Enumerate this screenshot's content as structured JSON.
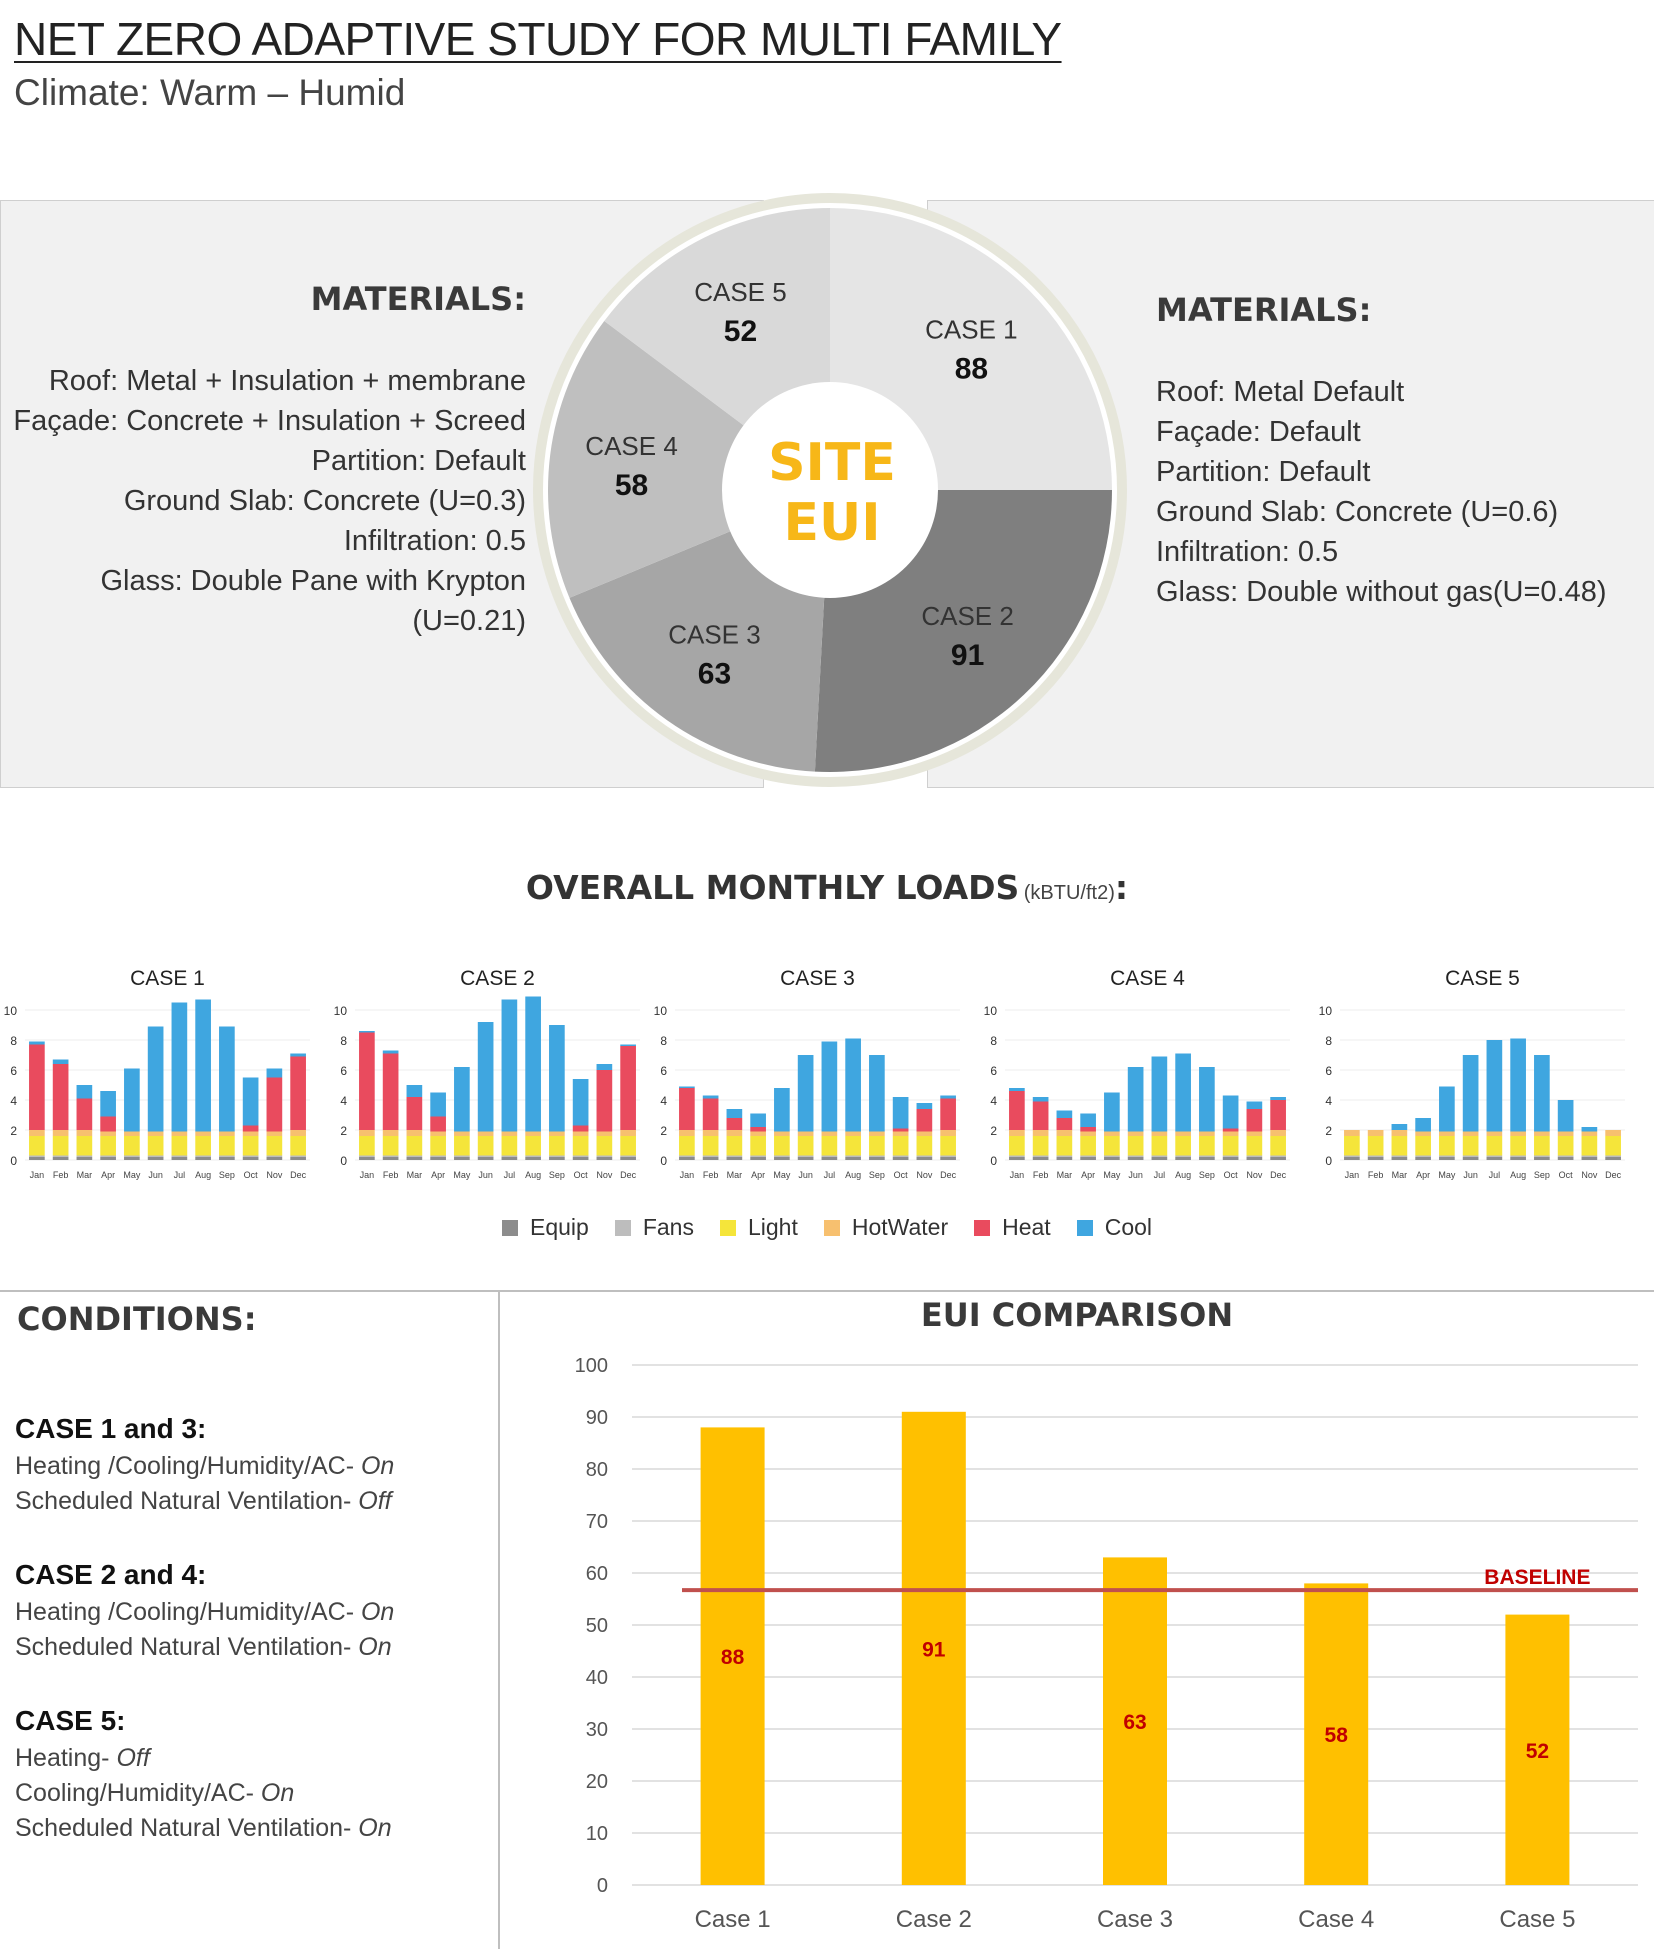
{
  "header": {
    "title": "NET ZERO ADAPTIVE STUDY FOR MULTI FAMILY",
    "subtitle": "Climate: Warm – Humid"
  },
  "materials_left": {
    "heading": "MATERIALS:",
    "lines": [
      "Roof: Metal + Insulation + membrane",
      "Façade: Concrete + Insulation + Screed",
      "Partition: Default",
      "Ground Slab: Concrete (U=0.3)",
      "Infiltration: 0.5",
      "Glass: Double Pane with Krypton",
      "(U=0.21)"
    ]
  },
  "materials_right": {
    "heading": "MATERIALS:",
    "lines": [
      "Roof: Metal Default",
      "Façade: Default",
      "Partition: Default",
      "Ground Slab: Concrete (U=0.6)",
      "Infiltration: 0.5",
      "Glass: Double without gas(U=0.48)"
    ]
  },
  "pie": {
    "center_line1": "SITE",
    "center_line2": "EUI",
    "colors": {
      "case1": "#e5e5e5",
      "case2": "#7f7f7f",
      "case3": "#a6a6a6",
      "case4": "#bfbfbf",
      "case5": "#d9d9d9",
      "center_text": "#f7b718"
    },
    "slices": [
      {
        "label": "CASE 1",
        "value": 88
      },
      {
        "label": "CASE 2",
        "value": 91
      },
      {
        "label": "CASE 3",
        "value": 63
      },
      {
        "label": "CASE 4",
        "value": 58
      },
      {
        "label": "CASE 5",
        "value": 52
      }
    ]
  },
  "monthly": {
    "title": "OVERALL MONTHLY LOADS",
    "unit": "(kBTU/ft2)",
    "colon": ":",
    "legend": [
      "Equip",
      "Fans",
      "Light",
      "HotWater",
      "Heat",
      "Cool"
    ],
    "colors": {
      "Equip": "#8c8c8c",
      "Fans": "#bdbdbd",
      "Light": "#f5e53a",
      "HotWater": "#f7c06f",
      "Heat": "#e94b5e",
      "Cool": "#3fa6e0"
    }
  },
  "conditions": {
    "heading": "CONDITIONS:",
    "groups": [
      {
        "case": "CASE 1 and 3:",
        "lines": [
          {
            "text": "Heating /Cooling/Humidity/AC- ",
            "state": "On"
          },
          {
            "text": "Scheduled Natural Ventilation- ",
            "state": "Off"
          }
        ]
      },
      {
        "case": "CASE 2 and 4:",
        "lines": [
          {
            "text": "Heating /Cooling/Humidity/AC- ",
            "state": "On"
          },
          {
            "text": "Scheduled Natural Ventilation- ",
            "state": "On"
          }
        ]
      },
      {
        "case": "CASE 5:",
        "lines": [
          {
            "text": "Heating- ",
            "state": "Off"
          },
          {
            "text": "Cooling/Humidity/AC- ",
            "state": "On"
          },
          {
            "text": "Scheduled Natural Ventilation- ",
            "state": "On"
          }
        ]
      }
    ]
  },
  "eui": {
    "title": "EUI COMPARISON",
    "baseline_label": "BASELINE",
    "colors": {
      "bar": "#ffc000",
      "baseline": "#c0504d",
      "label": "#c00000"
    }
  },
  "chart_data": [
    {
      "type": "pie",
      "title": "SITE EUI",
      "categories": [
        "CASE 1",
        "CASE 2",
        "CASE 3",
        "CASE 4",
        "CASE 5"
      ],
      "values": [
        88,
        91,
        63,
        58,
        52
      ]
    },
    {
      "type": "bar",
      "title": "CASE 1",
      "categories": [
        "Jan",
        "Feb",
        "Mar",
        "Apr",
        "May",
        "Jun",
        "Jul",
        "Aug",
        "Sep",
        "Oct",
        "Nov",
        "Dec"
      ],
      "ylim": [
        0,
        10
      ],
      "yticks": [
        0,
        2,
        4,
        6,
        8,
        10
      ],
      "stacked": true,
      "series": [
        {
          "name": "Equip",
          "values": [
            0.2,
            0.2,
            0.2,
            0.2,
            0.2,
            0.2,
            0.2,
            0.2,
            0.2,
            0.2,
            0.2,
            0.2
          ]
        },
        {
          "name": "Fans",
          "values": [
            0.1,
            0.1,
            0.1,
            0.1,
            0.1,
            0.1,
            0.1,
            0.1,
            0.1,
            0.1,
            0.1,
            0.1
          ]
        },
        {
          "name": "Light",
          "values": [
            1.3,
            1.3,
            1.3,
            1.3,
            1.3,
            1.3,
            1.3,
            1.3,
            1.3,
            1.3,
            1.3,
            1.3
          ]
        },
        {
          "name": "HotWater",
          "values": [
            0.4,
            0.4,
            0.4,
            0.3,
            0.3,
            0.3,
            0.3,
            0.3,
            0.3,
            0.3,
            0.3,
            0.4
          ]
        },
        {
          "name": "Heat",
          "values": [
            5.7,
            4.4,
            2.1,
            1.0,
            0.0,
            0.0,
            0.0,
            0.0,
            0.0,
            0.4,
            3.6,
            4.9
          ]
        },
        {
          "name": "Cool",
          "values": [
            0.2,
            0.3,
            0.9,
            1.7,
            4.2,
            7.0,
            8.6,
            8.8,
            7.0,
            3.2,
            0.6,
            0.2
          ]
        }
      ]
    },
    {
      "type": "bar",
      "title": "CASE 2",
      "categories": [
        "Jan",
        "Feb",
        "Mar",
        "Apr",
        "May",
        "Jun",
        "Jul",
        "Aug",
        "Sep",
        "Oct",
        "Nov",
        "Dec"
      ],
      "ylim": [
        0,
        10
      ],
      "yticks": [
        0,
        2,
        4,
        6,
        8,
        10
      ],
      "stacked": true,
      "series": [
        {
          "name": "Equip",
          "values": [
            0.2,
            0.2,
            0.2,
            0.2,
            0.2,
            0.2,
            0.2,
            0.2,
            0.2,
            0.2,
            0.2,
            0.2
          ]
        },
        {
          "name": "Fans",
          "values": [
            0.1,
            0.1,
            0.1,
            0.1,
            0.1,
            0.1,
            0.1,
            0.1,
            0.1,
            0.1,
            0.1,
            0.1
          ]
        },
        {
          "name": "Light",
          "values": [
            1.3,
            1.3,
            1.3,
            1.3,
            1.3,
            1.3,
            1.3,
            1.3,
            1.3,
            1.3,
            1.3,
            1.3
          ]
        },
        {
          "name": "HotWater",
          "values": [
            0.4,
            0.4,
            0.4,
            0.3,
            0.3,
            0.3,
            0.3,
            0.3,
            0.3,
            0.3,
            0.3,
            0.4
          ]
        },
        {
          "name": "Heat",
          "values": [
            6.5,
            5.1,
            2.2,
            1.0,
            0.0,
            0.0,
            0.0,
            0.0,
            0.0,
            0.4,
            4.1,
            5.6
          ]
        },
        {
          "name": "Cool",
          "values": [
            0.1,
            0.2,
            0.8,
            1.6,
            4.3,
            7.3,
            8.8,
            9.0,
            7.1,
            3.1,
            0.4,
            0.1
          ]
        }
      ]
    },
    {
      "type": "bar",
      "title": "CASE 3",
      "categories": [
        "Jan",
        "Feb",
        "Mar",
        "Apr",
        "May",
        "Jun",
        "Jul",
        "Aug",
        "Sep",
        "Oct",
        "Nov",
        "Dec"
      ],
      "ylim": [
        0,
        10
      ],
      "yticks": [
        0,
        2,
        4,
        6,
        8,
        10
      ],
      "stacked": true,
      "series": [
        {
          "name": "Equip",
          "values": [
            0.2,
            0.2,
            0.2,
            0.2,
            0.2,
            0.2,
            0.2,
            0.2,
            0.2,
            0.2,
            0.2,
            0.2
          ]
        },
        {
          "name": "Fans",
          "values": [
            0.1,
            0.1,
            0.1,
            0.1,
            0.1,
            0.1,
            0.1,
            0.1,
            0.1,
            0.1,
            0.1,
            0.1
          ]
        },
        {
          "name": "Light",
          "values": [
            1.3,
            1.3,
            1.3,
            1.3,
            1.3,
            1.3,
            1.3,
            1.3,
            1.3,
            1.3,
            1.3,
            1.3
          ]
        },
        {
          "name": "HotWater",
          "values": [
            0.4,
            0.4,
            0.4,
            0.3,
            0.3,
            0.3,
            0.3,
            0.3,
            0.3,
            0.3,
            0.3,
            0.4
          ]
        },
        {
          "name": "Heat",
          "values": [
            2.8,
            2.1,
            0.8,
            0.3,
            0.0,
            0.0,
            0.0,
            0.0,
            0.0,
            0.2,
            1.5,
            2.1
          ]
        },
        {
          "name": "Cool",
          "values": [
            0.1,
            0.2,
            0.6,
            0.9,
            2.9,
            5.1,
            6.0,
            6.2,
            5.1,
            2.1,
            0.4,
            0.2
          ]
        }
      ]
    },
    {
      "type": "bar",
      "title": "CASE 4",
      "categories": [
        "Jan",
        "Feb",
        "Mar",
        "Apr",
        "May",
        "Jun",
        "Jul",
        "Aug",
        "Sep",
        "Oct",
        "Nov",
        "Dec"
      ],
      "ylim": [
        0,
        10
      ],
      "yticks": [
        0,
        2,
        4,
        6,
        8,
        10
      ],
      "stacked": true,
      "series": [
        {
          "name": "Equip",
          "values": [
            0.2,
            0.2,
            0.2,
            0.2,
            0.2,
            0.2,
            0.2,
            0.2,
            0.2,
            0.2,
            0.2,
            0.2
          ]
        },
        {
          "name": "Fans",
          "values": [
            0.1,
            0.1,
            0.1,
            0.1,
            0.1,
            0.1,
            0.1,
            0.1,
            0.1,
            0.1,
            0.1,
            0.1
          ]
        },
        {
          "name": "Light",
          "values": [
            1.3,
            1.3,
            1.3,
            1.3,
            1.3,
            1.3,
            1.3,
            1.3,
            1.3,
            1.3,
            1.3,
            1.3
          ]
        },
        {
          "name": "HotWater",
          "values": [
            0.4,
            0.4,
            0.4,
            0.3,
            0.3,
            0.3,
            0.3,
            0.3,
            0.3,
            0.3,
            0.3,
            0.4
          ]
        },
        {
          "name": "Heat",
          "values": [
            2.6,
            1.9,
            0.8,
            0.3,
            0.0,
            0.0,
            0.0,
            0.0,
            0.0,
            0.2,
            1.5,
            2.0
          ]
        },
        {
          "name": "Cool",
          "values": [
            0.2,
            0.3,
            0.5,
            0.9,
            2.6,
            4.3,
            5.0,
            5.2,
            4.3,
            2.2,
            0.5,
            0.2
          ]
        }
      ]
    },
    {
      "type": "bar",
      "title": "CASE 5",
      "categories": [
        "Jan",
        "Feb",
        "Mar",
        "Apr",
        "May",
        "Jun",
        "Jul",
        "Aug",
        "Sep",
        "Oct",
        "Nov",
        "Dec"
      ],
      "ylim": [
        0,
        10
      ],
      "yticks": [
        0,
        2,
        4,
        6,
        8,
        10
      ],
      "stacked": true,
      "series": [
        {
          "name": "Equip",
          "values": [
            0.2,
            0.2,
            0.2,
            0.2,
            0.2,
            0.2,
            0.2,
            0.2,
            0.2,
            0.2,
            0.2,
            0.2
          ]
        },
        {
          "name": "Fans",
          "values": [
            0.1,
            0.1,
            0.1,
            0.1,
            0.1,
            0.1,
            0.1,
            0.1,
            0.1,
            0.1,
            0.1,
            0.1
          ]
        },
        {
          "name": "Light",
          "values": [
            1.3,
            1.3,
            1.3,
            1.3,
            1.3,
            1.3,
            1.3,
            1.3,
            1.3,
            1.3,
            1.3,
            1.3
          ]
        },
        {
          "name": "HotWater",
          "values": [
            0.4,
            0.4,
            0.4,
            0.3,
            0.3,
            0.3,
            0.3,
            0.3,
            0.3,
            0.3,
            0.3,
            0.4
          ]
        },
        {
          "name": "Heat",
          "values": [
            0,
            0,
            0,
            0,
            0,
            0,
            0,
            0,
            0,
            0,
            0,
            0
          ]
        },
        {
          "name": "Cool",
          "values": [
            0.0,
            0.0,
            0.4,
            0.9,
            3.0,
            5.1,
            6.1,
            6.2,
            5.1,
            2.1,
            0.3,
            0.0
          ]
        }
      ]
    },
    {
      "type": "bar",
      "title": "EUI COMPARISON",
      "categories": [
        "Case 1",
        "Case 2",
        "Case 3",
        "Case 4",
        "Case 5"
      ],
      "values": [
        88,
        91,
        63,
        58,
        52
      ],
      "ylim": [
        0,
        100
      ],
      "yticks": [
        0,
        10,
        20,
        30,
        40,
        50,
        60,
        70,
        80,
        90,
        100
      ],
      "baseline": 56.7,
      "annotations": [
        "BASELINE"
      ]
    }
  ]
}
